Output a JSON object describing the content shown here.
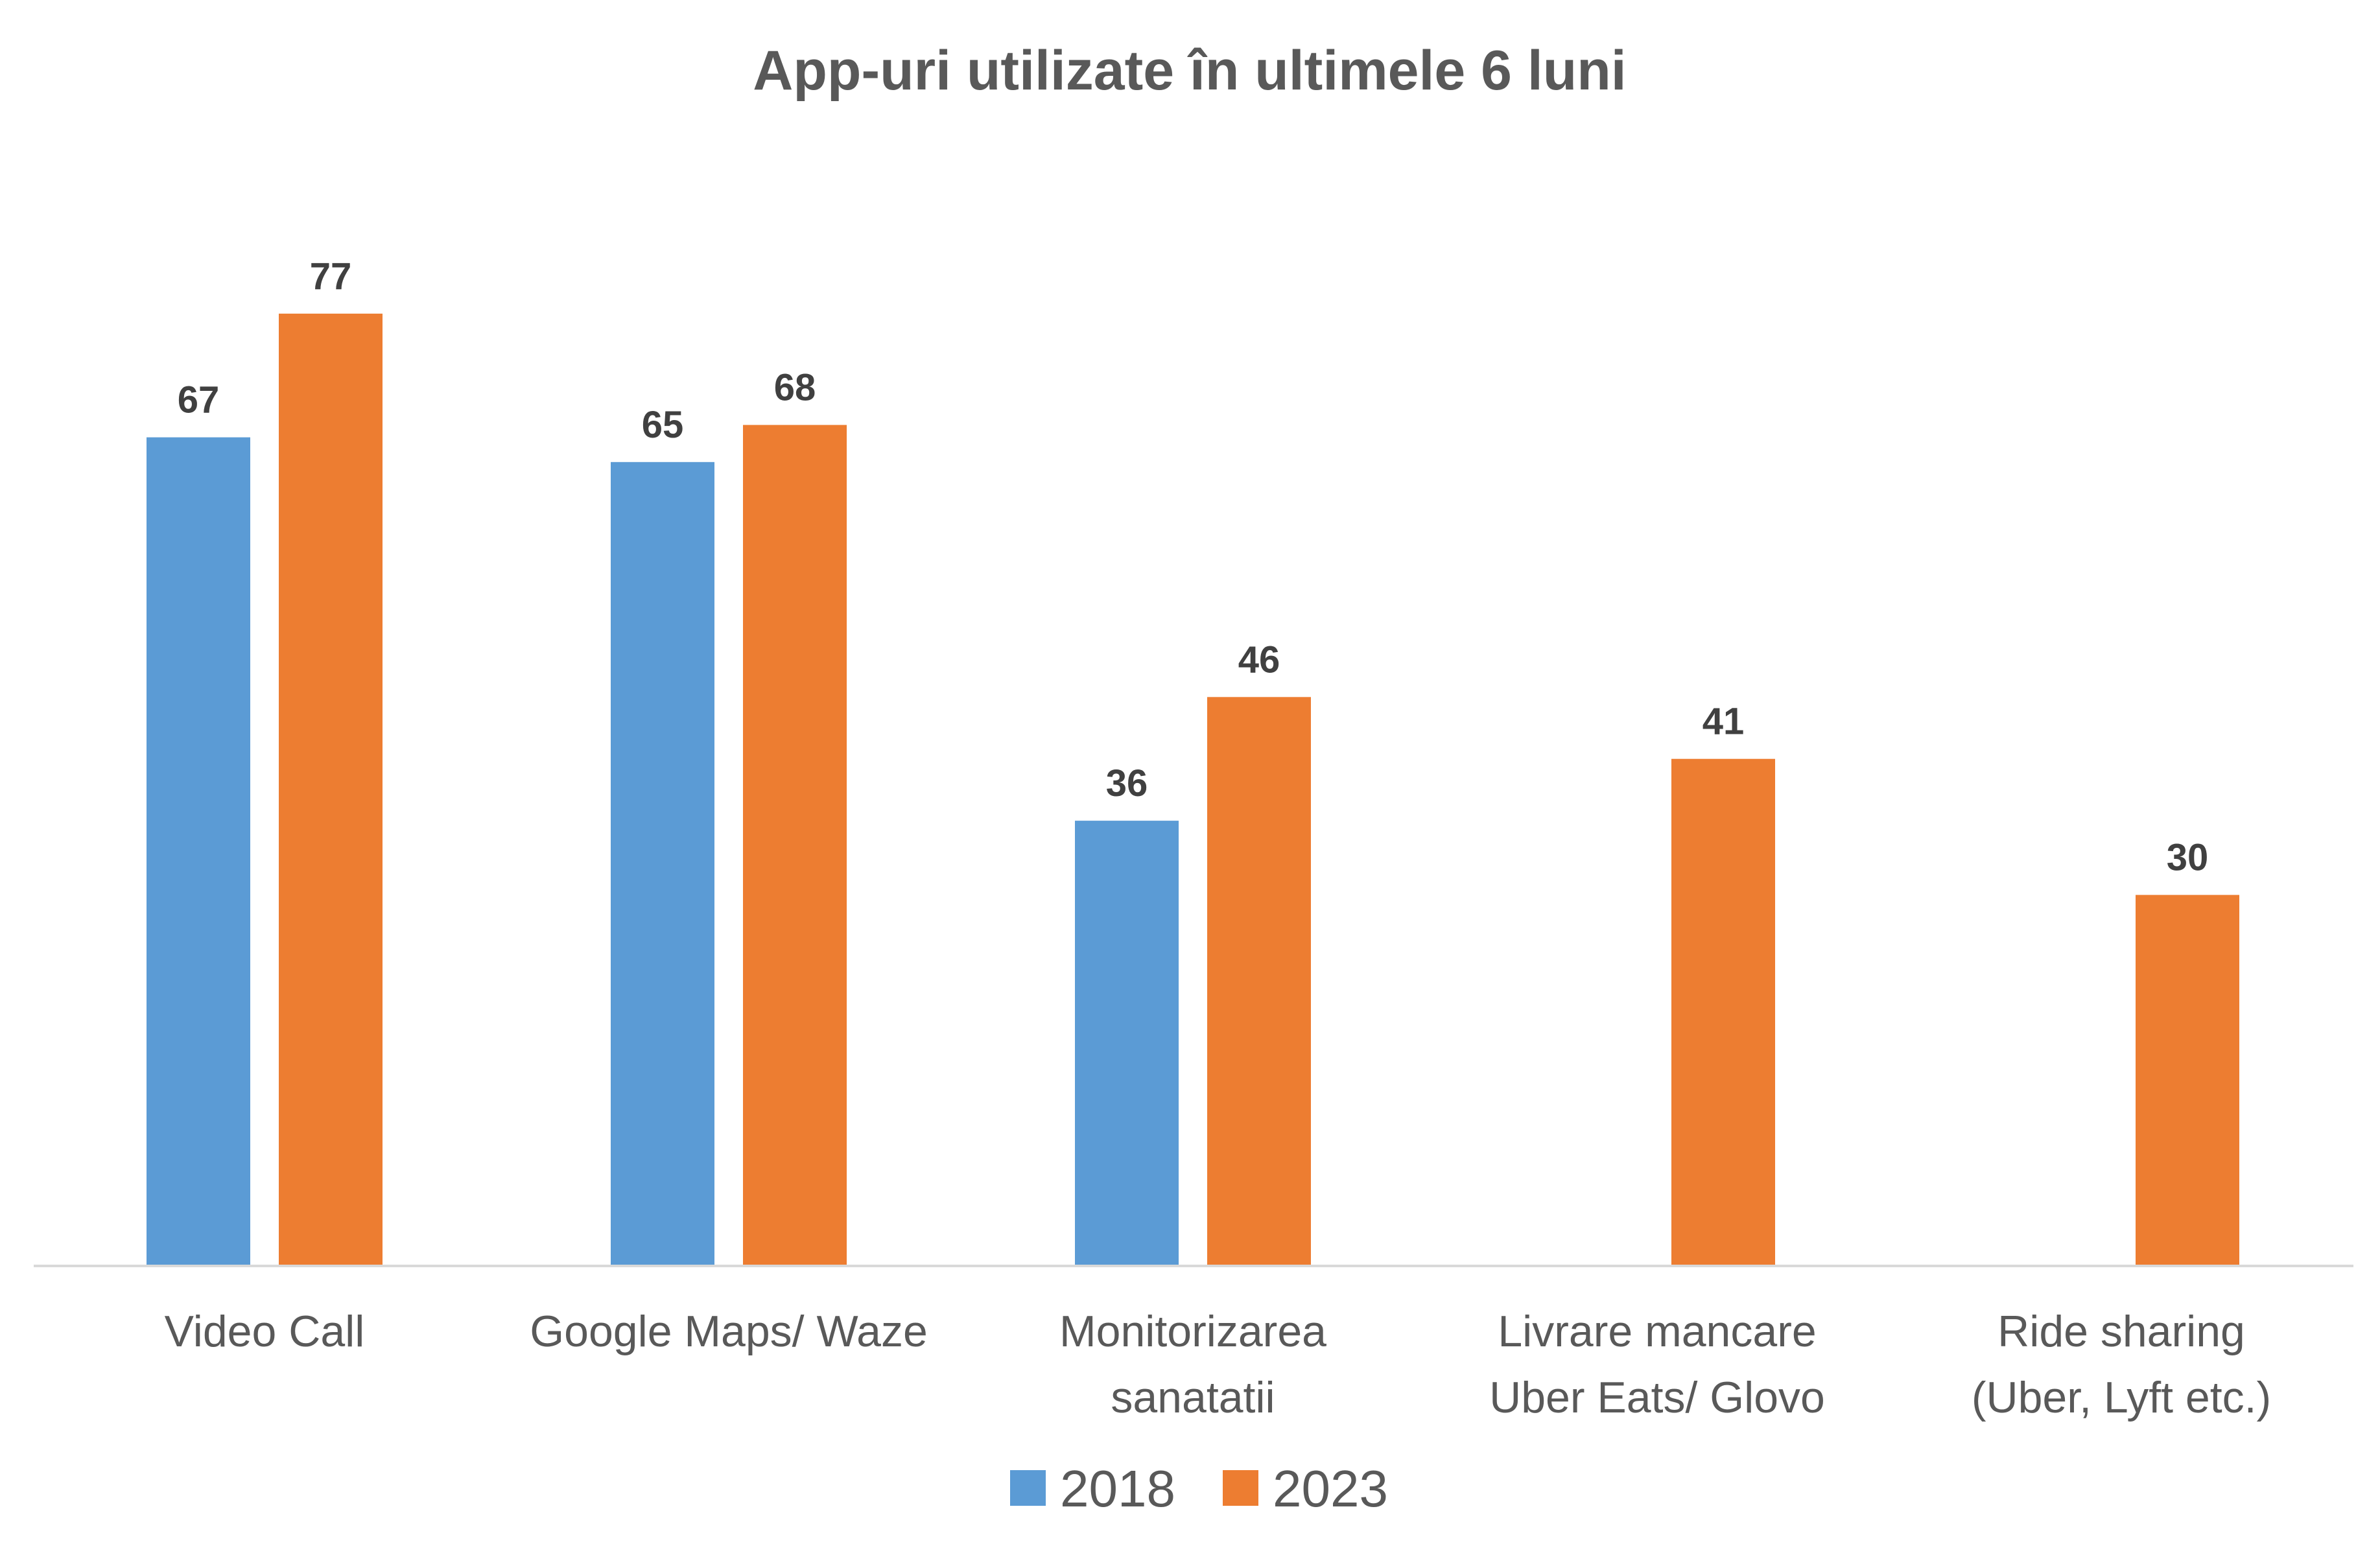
{
  "chart_data": {
    "type": "bar",
    "title": "App-uri utilizate în ultimele 6 luni",
    "categories": [
      [
        "Video Call"
      ],
      [
        "Google Maps/ Waze"
      ],
      [
        "Monitorizarea",
        "sanatatii"
      ],
      [
        "Livrare mancare",
        "Uber Eats/ Glovo"
      ],
      [
        "Ride sharing",
        "(Uber, Lyft etc.)"
      ]
    ],
    "series": [
      {
        "name": "2018",
        "color": "#5b9bd5",
        "values": [
          67,
          65,
          36,
          null,
          null
        ]
      },
      {
        "name": "2023",
        "color": "#ed7d31",
        "values": [
          77,
          68,
          46,
          41,
          30
        ]
      }
    ],
    "ylim": [
      0,
      77
    ],
    "grid": false,
    "data_labels": true,
    "legend_position": "bottom",
    "xlabel": "",
    "ylabel": ""
  }
}
